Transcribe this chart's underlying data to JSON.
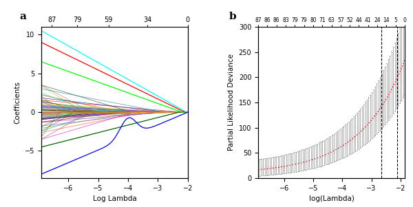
{
  "panel_a": {
    "label": "a",
    "xlabel": "Log Lambda",
    "ylabel": "Coefficients",
    "xlim": [
      -6.9,
      -2.0
    ],
    "ylim": [
      -8.5,
      11
    ],
    "top_ticks": [
      87,
      79,
      59,
      34,
      0
    ],
    "top_tick_positions": [
      -6.55,
      -5.7,
      -4.65,
      -3.35,
      -2.0
    ],
    "xticks": [
      -6,
      -5,
      -4,
      -3,
      -2
    ],
    "yticks": [
      -5,
      0,
      5,
      10
    ]
  },
  "panel_b": {
    "label": "b",
    "xlabel": "log(Lambda)",
    "ylabel": "Partial Likelihood Deviance",
    "xlim": [
      -6.9,
      -1.85
    ],
    "ylim": [
      0,
      300
    ],
    "top_labels": [
      87,
      86,
      86,
      83,
      79,
      79,
      80,
      71,
      63,
      57,
      52,
      44,
      41,
      24,
      14,
      5,
      0
    ],
    "vline1": -2.65,
    "vline2": -2.1,
    "xticks": [
      -6,
      -5,
      -4,
      -3,
      -2
    ],
    "yticks": [
      0,
      50,
      100,
      150,
      200,
      250,
      300
    ]
  }
}
